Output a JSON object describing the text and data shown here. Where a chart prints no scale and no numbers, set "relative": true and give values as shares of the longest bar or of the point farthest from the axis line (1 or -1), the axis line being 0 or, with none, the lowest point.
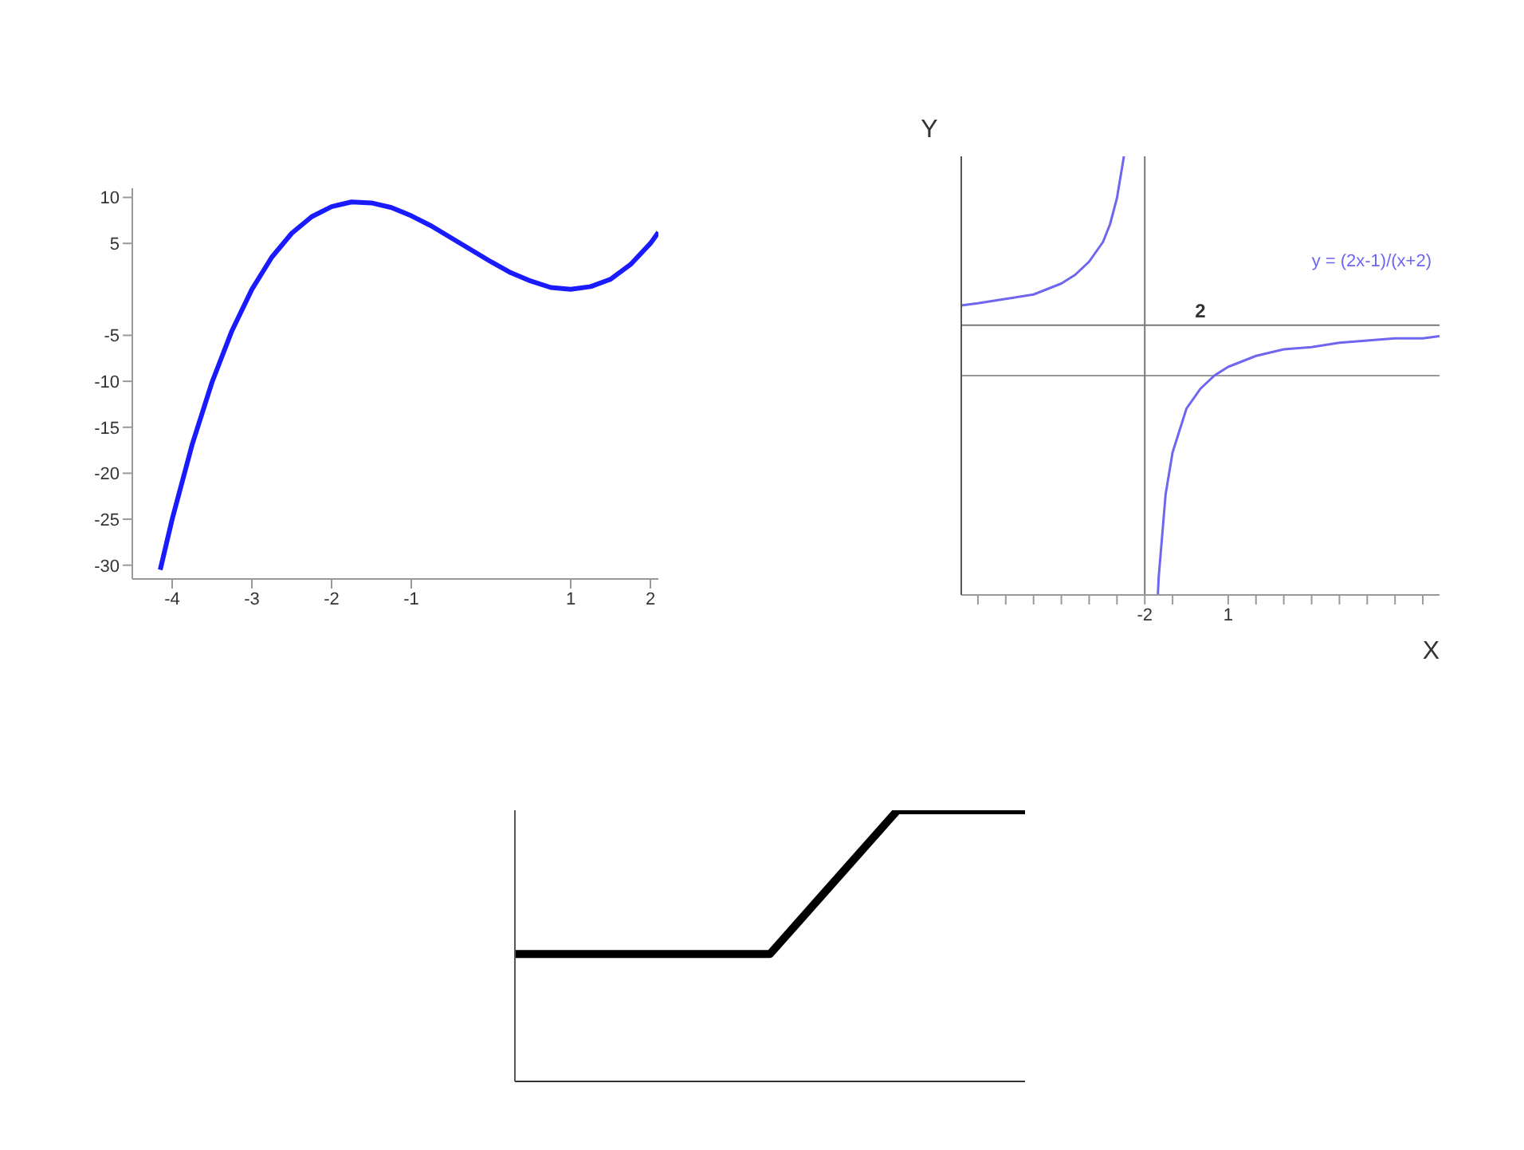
{
  "chart_data": [
    {
      "type": "line",
      "x": [
        -4.15,
        -4,
        -3.75,
        -3.5,
        -3.25,
        -3,
        -2.75,
        -2.5,
        -2.25,
        -2,
        -1.75,
        -1.5,
        -1.25,
        -1,
        -0.75,
        -0.5,
        -0.25,
        0,
        0.25,
        0.5,
        0.75,
        1,
        1.25,
        1.5,
        1.75,
        2,
        2.1
      ],
      "series": [
        {
          "color": "#1a1aff",
          "values": [
            -30.5,
            -25,
            -16.9,
            -10.1,
            -4.5,
            0,
            3.5,
            6.1,
            7.9,
            9,
            9.5,
            9.4,
            8.9,
            8,
            6.9,
            5.6,
            4.3,
            3,
            1.8,
            0.9,
            0.2,
            0,
            0.3,
            1.1,
            2.7,
            5,
            6.2
          ]
        }
      ],
      "xlim": [
        -4.5,
        2.1
      ],
      "ylim": [
        -31.5,
        11
      ],
      "xticks": [
        -4,
        -3,
        -2,
        -1,
        1,
        2
      ],
      "yticks": [
        10,
        5,
        -5,
        -10,
        -15,
        -20,
        -25,
        -30
      ]
    },
    {
      "type": "line",
      "xlabel": "X",
      "ylabel": "Y",
      "x": [
        -8.6,
        -8,
        -7,
        -6,
        -5,
        -4.5,
        -4,
        -3.5,
        -3.25,
        -3,
        -2.75,
        -2,
        -1.53,
        -1.5,
        -1.25,
        -1,
        -0.5,
        0,
        0.5,
        1,
        2,
        3,
        4,
        5,
        6,
        7,
        8,
        8.6
      ],
      "series": [
        {
          "name": "y = (2x-1)/(x+2)",
          "color": "#6f66f0",
          "values": [
            0.32,
            0.33,
            0.35,
            0.37,
            0.42,
            0.46,
            0.52,
            0.61,
            0.69,
            0.81,
            1,
            null,
            -1,
            -0.92,
            -0.54,
            -0.35,
            -0.15,
            -0.06,
            0,
            0.04,
            0.09,
            0.12,
            0.13,
            0.15,
            0.16,
            0.17,
            0.17,
            0.18
          ]
        }
      ],
      "relative": true,
      "xlim": [
        -8.6,
        8.6
      ],
      "annotations": [
        {
          "text": "2",
          "x": 0,
          "y": 0.23
        }
      ],
      "xticks": [
        {
          "value": -8,
          "label": null
        },
        {
          "value": -7,
          "label": null
        },
        {
          "value": -6,
          "label": null
        },
        {
          "value": -5,
          "label": null
        },
        {
          "value": -4,
          "label": null
        },
        {
          "value": -3,
          "label": null
        },
        -2,
        {
          "value": -1,
          "label": null
        },
        1,
        {
          "value": 2,
          "label": null
        },
        {
          "value": 3,
          "label": null
        },
        {
          "value": 4,
          "label": null
        },
        {
          "value": 5,
          "label": null
        },
        {
          "value": 6,
          "label": null
        },
        {
          "value": 7,
          "label": null
        },
        {
          "value": 8,
          "label": null
        }
      ],
      "ref_lines": [
        {
          "axis": "x",
          "value": -2,
          "color": "#777777"
        },
        {
          "axis": "y",
          "value": 0.23,
          "color": "#777777"
        }
      ]
    },
    {
      "type": "line",
      "relative": true,
      "categories": [
        null,
        null,
        null,
        null,
        null
      ],
      "series": [
        {
          "color": "#000000",
          "values": [
            0.47,
            0.47,
            0.47,
            1,
            1
          ]
        }
      ]
    }
  ]
}
